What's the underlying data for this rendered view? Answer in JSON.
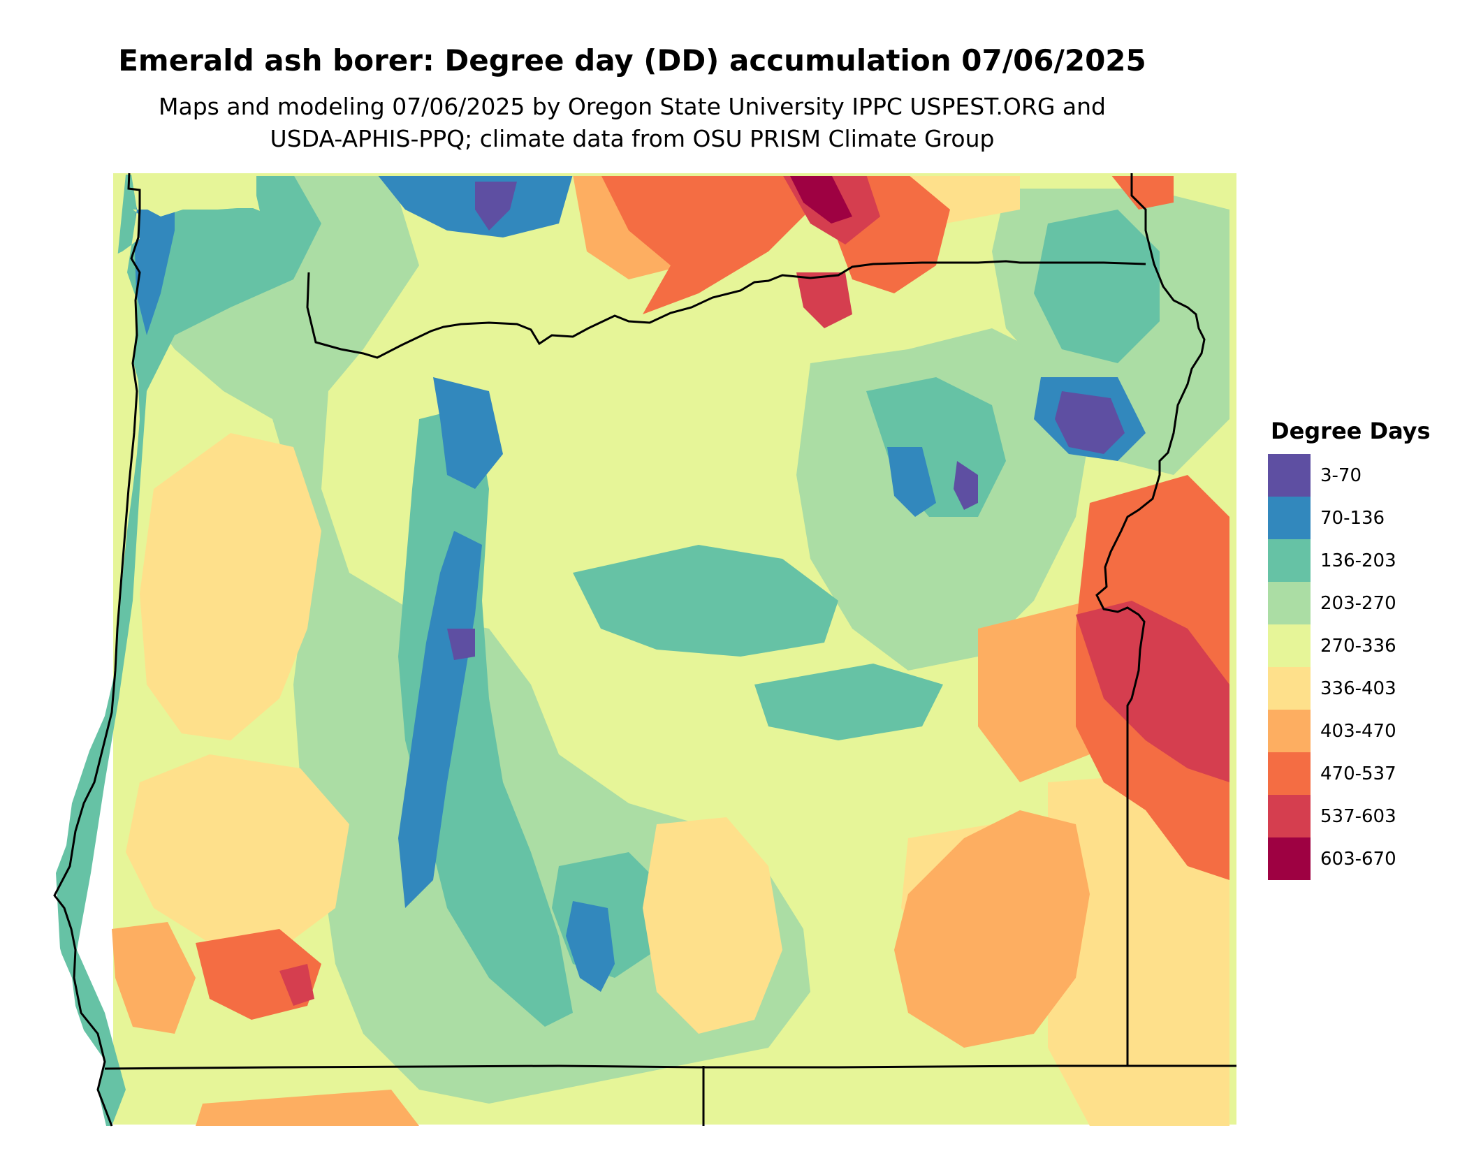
{
  "title": "Emerald ash borer: Degree day (DD) accumulation 07/06/2025",
  "subtitle": {
    "line1": "Maps and modeling 07/06/2025 by Oregon State University IPPC USPEST.ORG and",
    "line2": "USDA-APHIS-PPQ; climate data from OSU PRISM Climate Group"
  },
  "legend": {
    "title": "Degree Days",
    "items": [
      {
        "label": "3-70",
        "color": "#5e4fa2"
      },
      {
        "label": "70-136",
        "color": "#3288bd"
      },
      {
        "label": "136-203",
        "color": "#66c2a5"
      },
      {
        "label": "203-270",
        "color": "#abdda4"
      },
      {
        "label": "270-336",
        "color": "#e6f598"
      },
      {
        "label": "336-403",
        "color": "#fee08b"
      },
      {
        "label": "403-470",
        "color": "#fdae61"
      },
      {
        "label": "470-537",
        "color": "#f46d43"
      },
      {
        "label": "537-603",
        "color": "#d53e4f"
      },
      {
        "label": "603-670",
        "color": "#9e0142"
      }
    ]
  },
  "map": {
    "region": "Oregon",
    "background_color": "#e6f598"
  }
}
